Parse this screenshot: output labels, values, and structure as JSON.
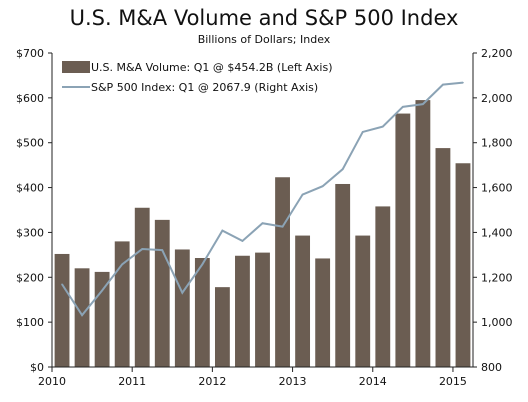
{
  "chart_data": {
    "type": "bar+line",
    "title": "U.S. M&A Volume and S&P 500 Index",
    "subtitle": "Billions of Dollars; Index",
    "x_tick_labels": [
      "2010",
      "2011",
      "2012",
      "2013",
      "2014",
      "2015"
    ],
    "left_axis": {
      "range": [
        0,
        700
      ],
      "ticks": [
        0,
        100,
        200,
        300,
        400,
        500,
        600,
        700
      ],
      "tick_labels": [
        "$0",
        "$100",
        "$200",
        "$300",
        "$400",
        "$500",
        "$600",
        "$700"
      ]
    },
    "right_axis": {
      "range": [
        800,
        2200
      ],
      "ticks": [
        800,
        1000,
        1200,
        1400,
        1600,
        1800,
        2000,
        2200
      ],
      "tick_labels": [
        "800",
        "1,000",
        "1,200",
        "1,400",
        "1,600",
        "1,800",
        "2,000",
        "2,200"
      ]
    },
    "bar_series": {
      "name": "U.S. M&A Volume: Q1 @ $454.2B (Left Axis)",
      "color": "#6b5d52",
      "values": [
        252,
        220,
        212,
        280,
        355,
        328,
        262,
        243,
        178,
        248,
        255,
        423,
        293,
        242,
        408,
        293,
        358,
        565,
        595,
        488,
        454.2
      ]
    },
    "line_series": {
      "name": "S&P 500 Index: Q1 @ 2067.9 (Right Axis)",
      "color": "#8ba3b5",
      "values": [
        1169,
        1031,
        1141,
        1258,
        1326,
        1321,
        1131,
        1258,
        1408,
        1362,
        1441,
        1426,
        1569,
        1606,
        1682,
        1848,
        1872,
        1960,
        1972,
        2059,
        2067.9
      ]
    },
    "grid": false,
    "legend_position": "top-left"
  }
}
